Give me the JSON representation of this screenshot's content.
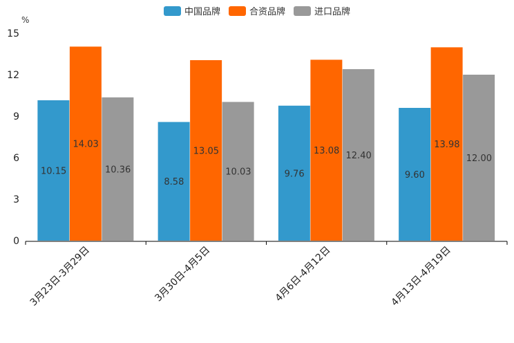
{
  "chart_data": {
    "type": "bar",
    "title": "",
    "ylabel": "%",
    "xlabel": "",
    "ylim": [
      0,
      15
    ],
    "yticks": [
      0,
      3,
      6,
      9,
      12,
      15
    ],
    "categories": [
      "3月23日-3月29日",
      "3月30日-4月5日",
      "4月6日-4月12日",
      "4月13日-4月19日"
    ],
    "series": [
      {
        "name": "中国品牌",
        "color": "#3399cc",
        "values": [
          10.15,
          8.58,
          9.76,
          9.6
        ],
        "labels": [
          "10.15",
          "8.58",
          "9.76",
          "9.60"
        ]
      },
      {
        "name": "合资品牌",
        "color": "#ff6600",
        "values": [
          14.03,
          13.05,
          13.08,
          13.98
        ],
        "labels": [
          "14.03",
          "13.05",
          "13.08",
          "13.98"
        ]
      },
      {
        "name": "进口品牌",
        "color": "#999999",
        "values": [
          10.36,
          10.03,
          12.4,
          12.0
        ],
        "labels": [
          "10.36",
          "10.03",
          "12.40",
          "12.00"
        ]
      }
    ],
    "legend_position": "top-center"
  }
}
